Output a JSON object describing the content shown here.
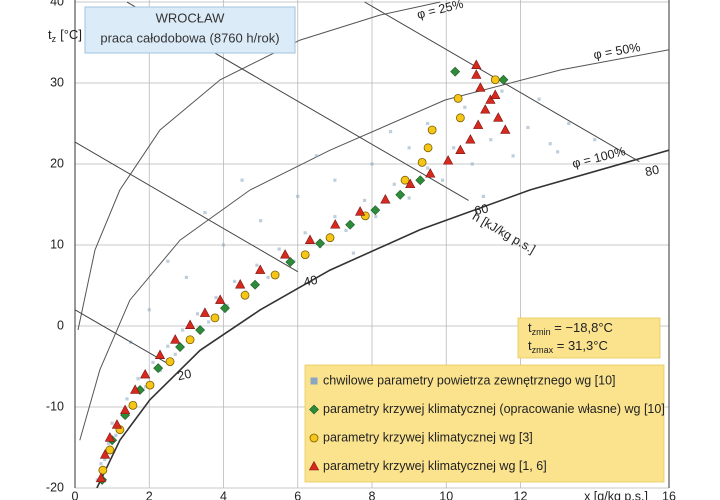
{
  "chart_data": {
    "type": "scatter",
    "title_lines": [
      "WROCŁAW",
      "praca całodobowa (8760 h/rok)"
    ],
    "y_label": {
      "symbol": "t",
      "subscript": "z",
      "unit": "[°C]"
    },
    "x_label": "x [g/kg p.s.]",
    "xlim": [
      0,
      16
    ],
    "ylim": [
      -20,
      40
    ],
    "xticks": [
      0,
      2,
      4,
      6,
      8,
      10,
      12,
      16
    ],
    "yticks": [
      -20,
      -10,
      0,
      10,
      20,
      30,
      40
    ],
    "grid": true,
    "legend": "bottom-right",
    "stats": [
      {
        "symbol": "t",
        "subscript": "zmin",
        "text": " = −18,8°C"
      },
      {
        "symbol": "t",
        "subscript": "zmax",
        "text": " = 31,3°C"
      }
    ],
    "curves": [
      {
        "label": "φ = 25%",
        "color": "#555555",
        "x": [
          0.08,
          0.54,
          1.21,
          2.29,
          3.91,
          6.06,
          8.22,
          9.84
        ],
        "y": [
          -0.5,
          9.4,
          16.8,
          24.2,
          30.4,
          35.3,
          38.4,
          40
        ]
      },
      {
        "label": "φ = 50%",
        "color": "#555555",
        "x": [
          0.13,
          0.67,
          1.48,
          2.83,
          4.72,
          6.87,
          9.97,
          13.07,
          16.0
        ],
        "y": [
          -14.1,
          -5.4,
          3.2,
          10.6,
          16.8,
          21.7,
          27.9,
          31.6,
          34.1
        ]
      },
      {
        "label": "φ = 100%",
        "color": "#333333",
        "x": [
          0.59,
          1.21,
          2.02,
          3.37,
          4.99,
          6.87,
          9.3,
          12.26,
          16.0
        ],
        "y": [
          -20,
          -14.1,
          -9.1,
          -3.0,
          2.0,
          6.9,
          11.9,
          16.8,
          21.7
        ]
      }
    ],
    "enthalpy_label": "h [kJ/kg p.s.]",
    "enthalpy_lines": [
      {
        "label": "20",
        "x": [
          0,
          2.6
        ],
        "y": [
          2,
          -4.9
        ]
      },
      {
        "label": "40",
        "x": [
          0,
          6.0
        ],
        "y": [
          22.7,
          6.7
        ]
      },
      {
        "label": "60",
        "x": [
          1.4,
          10.6
        ],
        "y": [
          40,
          15.5
        ]
      },
      {
        "label": "80",
        "x": [
          7.8,
          15.2
        ],
        "y": [
          40,
          20.3
        ]
      }
    ],
    "series": [
      {
        "name": "chwilowe parametry powietrza zewnętrznego wg [10]",
        "marker": "square",
        "color": "#8aa6c0",
        "x": [
          0.6,
          0.7,
          0.8,
          0.9,
          1.0,
          1.1,
          1.3,
          1.4,
          1.6,
          1.7,
          1.9,
          2.1,
          2.3,
          2.5,
          2.7,
          2.9,
          3.1,
          3.3,
          3.6,
          3.8,
          4.1,
          4.3,
          4.6,
          4.9,
          5.2,
          5.5,
          5.9,
          6.2,
          6.6,
          7.0,
          7.3,
          7.8,
          8.1,
          8.6,
          9.0,
          9.5,
          9.9,
          10.2,
          10.7,
          11.2,
          11.8,
          12.2,
          12.8,
          13.3,
          14,
          9.0,
          8.0,
          7.0,
          6.0,
          5.0,
          4.0,
          3.0,
          2.0,
          9.5,
          10.5,
          11.5,
          8.5,
          6.5,
          4.5,
          3.5,
          12.5,
          2.5,
          1.5,
          11,
          13,
          7.5
        ],
        "y": [
          -19,
          -17,
          -16.5,
          -14.5,
          -12,
          -13.5,
          -11,
          -9,
          -9.5,
          -6.5,
          -7.5,
          -4.5,
          -5.5,
          -2.5,
          -3.5,
          -0.5,
          -1.5,
          1.5,
          0.5,
          3.5,
          2.5,
          5.5,
          4.2,
          7.5,
          6,
          9.5,
          8,
          11.5,
          9.8,
          13.5,
          11.8,
          15.5,
          13.5,
          17.5,
          15.8,
          19.5,
          18,
          22,
          20,
          23,
          21,
          24.5,
          22.5,
          25,
          23,
          22,
          20,
          18,
          16,
          13,
          10,
          6,
          2,
          25,
          27,
          29,
          24,
          21,
          18,
          14,
          28,
          8,
          -2,
          16,
          21.5,
          9
        ]
      },
      {
        "name": "parametry krzywej klimatycznej (opracowanie własne) wg [10]",
        "marker": "diamond",
        "color": "#2e8b3a",
        "x": [
          0.73,
          1.0,
          1.35,
          1.75,
          2.24,
          2.83,
          3.37,
          4.04,
          4.85,
          5.8,
          6.6,
          7.41,
          8.09,
          8.76,
          9.3,
          10.24,
          11.54
        ],
        "y": [
          -19.0,
          -14.1,
          -11.0,
          -7.9,
          -5.2,
          -2.6,
          -0.5,
          2.2,
          5.1,
          7.9,
          10.2,
          12.5,
          14.3,
          16.2,
          18.0,
          31.4,
          30.4
        ]
      },
      {
        "name": "parametry krzywej klimatycznej wg [3]",
        "marker": "circle",
        "color": "#f5c518",
        "x": [
          0.75,
          0.94,
          1.21,
          1.56,
          2.02,
          2.56,
          3.1,
          3.77,
          4.58,
          5.39,
          6.2,
          6.87,
          7.82,
          8.89,
          9.35,
          9.51,
          9.62,
          10.38,
          10.32,
          11.32
        ],
        "y": [
          -17.8,
          -15.3,
          -12.8,
          -9.8,
          -7.3,
          -4.4,
          -1.7,
          1.0,
          3.8,
          6.3,
          8.8,
          10.9,
          13.6,
          18.0,
          20.2,
          22.0,
          24.2,
          25.7,
          28.1,
          30.4
        ]
      },
      {
        "name": "parametry krzywej klimatycznej wg [1, 6]",
        "marker": "triangle",
        "color": "#d62a1e",
        "x": [
          0.7,
          0.81,
          0.94,
          1.13,
          1.35,
          1.62,
          1.89,
          2.29,
          2.7,
          3.1,
          3.5,
          3.91,
          4.45,
          4.99,
          5.66,
          6.33,
          7.01,
          7.68,
          8.36,
          9.03,
          9.57,
          10.05,
          10.38,
          10.65,
          10.86,
          11.05,
          11.19,
          10.92,
          10.81,
          10.81,
          11.59,
          11.4,
          11.32
        ],
        "y": [
          -18.8,
          -15.9,
          -13.8,
          -12.2,
          -10.4,
          -7.9,
          -6.0,
          -3.6,
          -1.7,
          0.1,
          1.6,
          3.2,
          5.1,
          6.9,
          8.8,
          10.6,
          12.5,
          14.1,
          15.6,
          17.5,
          18.8,
          20.4,
          21.7,
          23.0,
          24.8,
          26.7,
          27.9,
          29.4,
          31.0,
          32.2,
          24.2,
          25.7,
          28.5
        ]
      }
    ]
  }
}
